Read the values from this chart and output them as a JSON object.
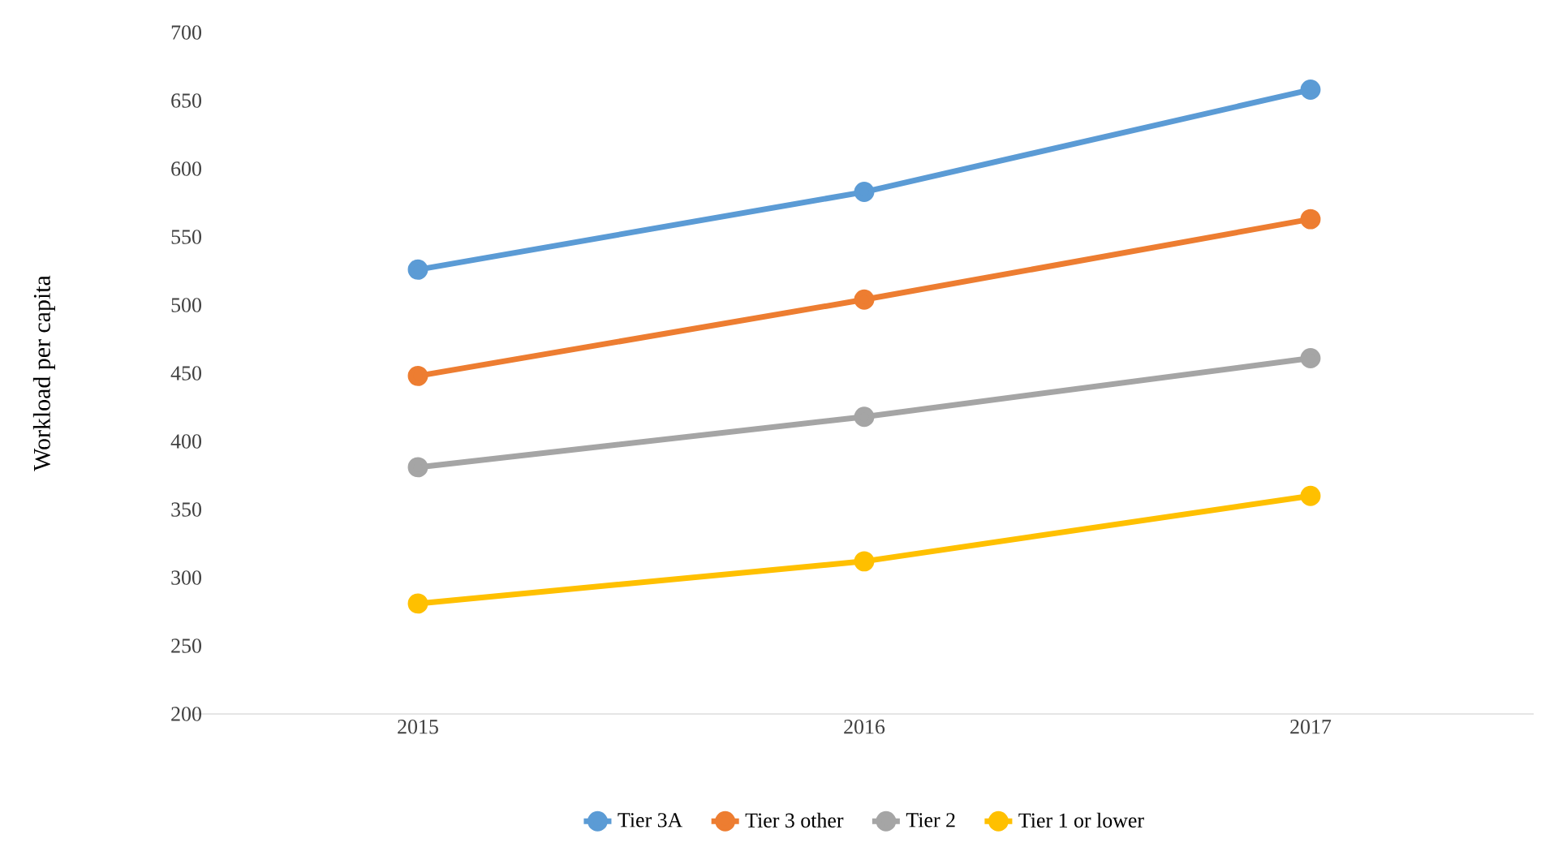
{
  "chart_data": {
    "type": "line",
    "ylabel": "Workload per capita",
    "categories": [
      "2015",
      "2016",
      "2017"
    ],
    "series": [
      {
        "name": "Tier 3A",
        "color": "#5b9bd5",
        "values": [
          526,
          583,
          658
        ]
      },
      {
        "name": "Tier 3 other",
        "color": "#ed7d31",
        "values": [
          448,
          504,
          563
        ]
      },
      {
        "name": "Tier 2",
        "color": "#a5a5a5",
        "values": [
          381,
          418,
          461
        ]
      },
      {
        "name": "Tier 1 or lower",
        "color": "#ffc000",
        "values": [
          281,
          312,
          360
        ]
      }
    ],
    "ylim": [
      200,
      700
    ],
    "yticks": [
      200,
      250,
      300,
      350,
      400,
      450,
      500,
      550,
      600,
      650,
      700
    ],
    "grid": false,
    "legend": "bottom",
    "marker": "circle",
    "line_style": "solid"
  }
}
